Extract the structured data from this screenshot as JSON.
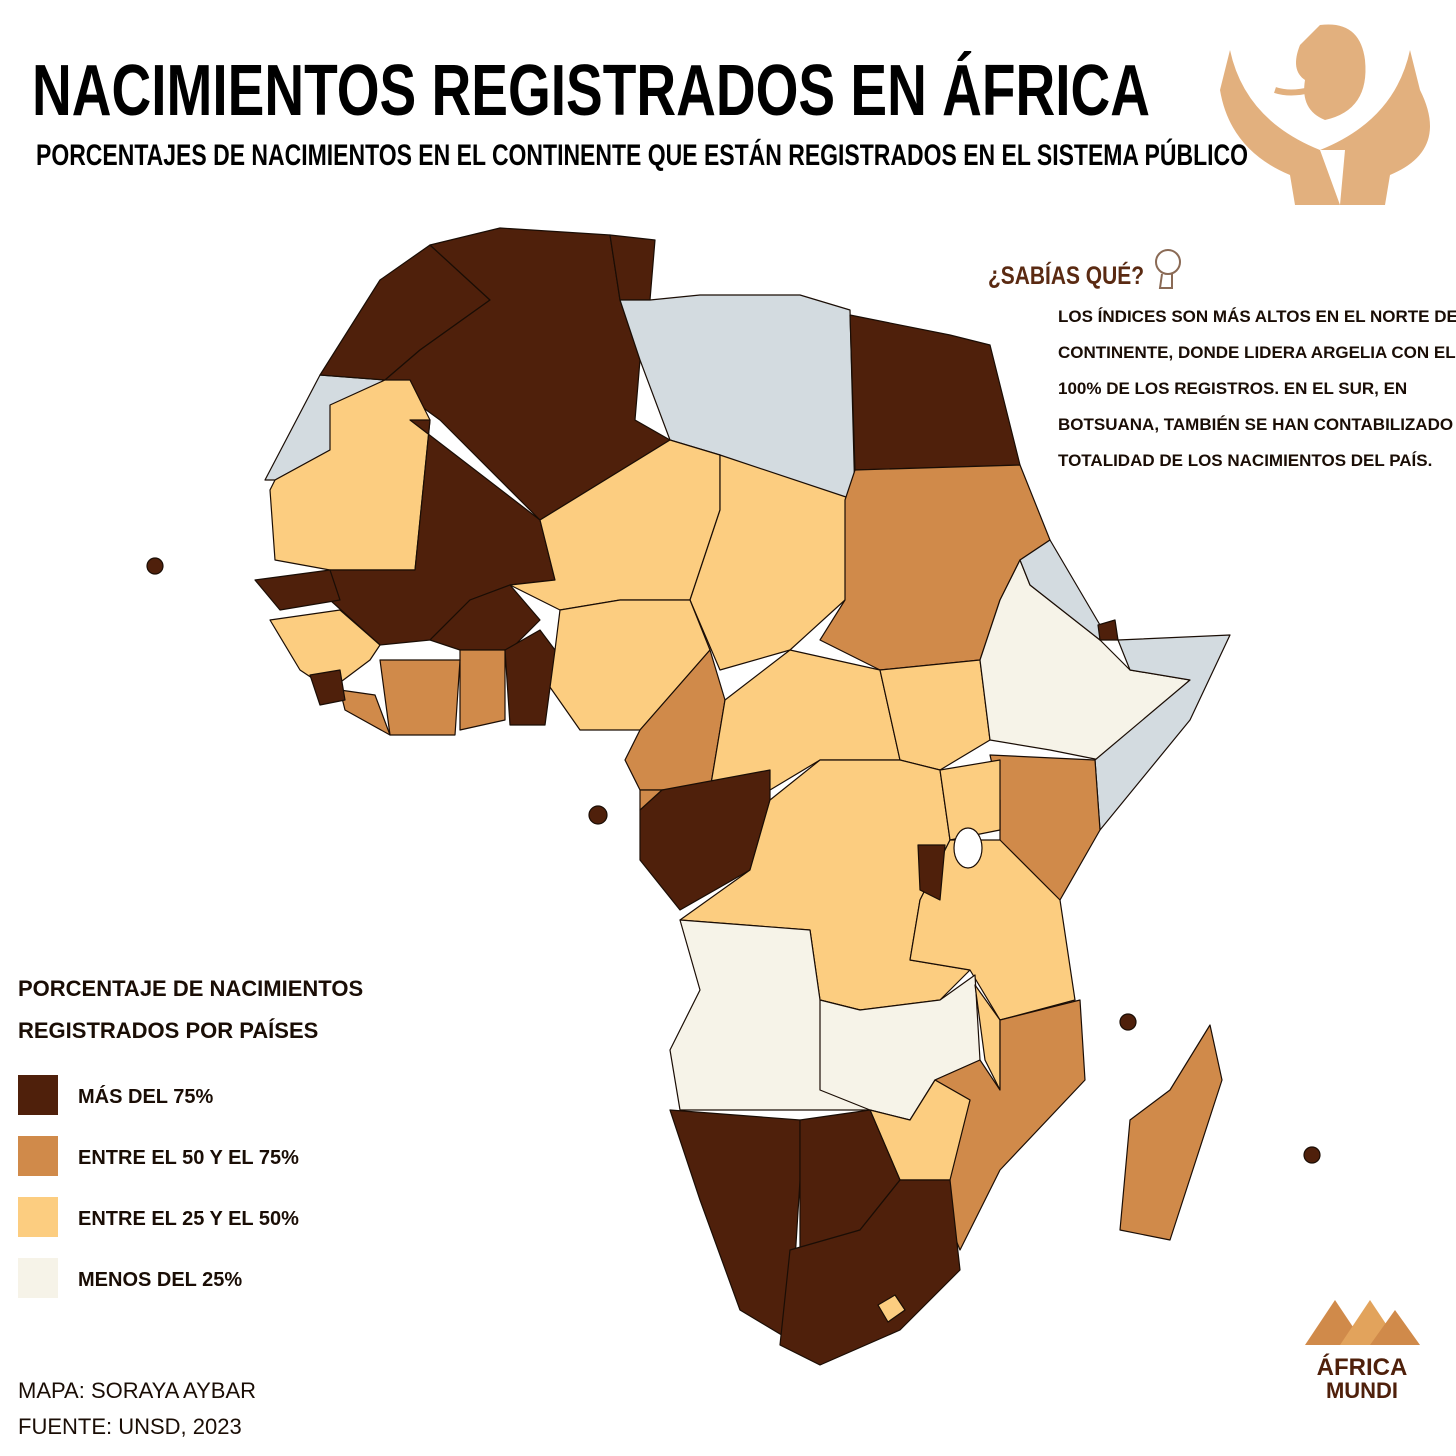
{
  "header": {
    "title": "NACIMIENTOS REGISTRADOS EN ÁFRICA",
    "subtitle": "PORCENTAJES DE NACIMIENTOS EN EL CONTINENTE QUE ESTÁN REGISTRADOS EN EL SISTEMA PÚBLICO"
  },
  "note": {
    "heading": "¿SABÍAS QUÉ?",
    "lines": [
      "LOS ÍNDICES SON MÁS ALTOS EN EL NORTE DEL",
      "CONTINENTE, DONDE LIDERA ARGELIA CON EL",
      "100% DE LOS REGISTROS. EN EL SUR, EN",
      "BOTSUANA, TAMBIÉN SE HAN CONTABILIZADO LA",
      "TOTALIDAD DE LOS NACIMIENTOS DEL PAÍS."
    ]
  },
  "legend": {
    "title_lines": [
      "PORCENTAJE DE NACIMIENTOS",
      "REGISTRADOS POR PAÍSES"
    ],
    "items": [
      {
        "label": "MÁS DEL 75%",
        "color": "#4f200b"
      },
      {
        "label": "ENTRE EL 50 Y EL 75%",
        "color": "#d08a4a"
      },
      {
        "label": "ENTRE EL 25 Y EL 50%",
        "color": "#fccd80"
      },
      {
        "label": "MENOS DEL 25%",
        "color": "#f6f3e8"
      }
    ]
  },
  "credits": [
    "MAPA: SORAYA AYBAR",
    "FUENTE: UNSD, 2023"
  ],
  "logo": {
    "lines": [
      "ÁFRICA",
      "MUNDI"
    ]
  }
}
